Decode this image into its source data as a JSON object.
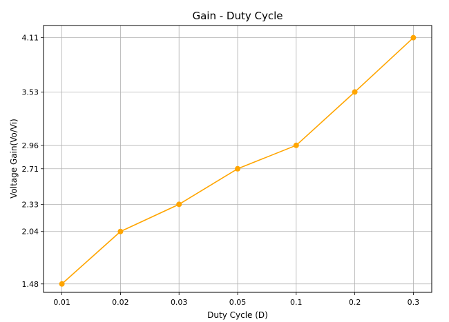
{
  "chart_data": {
    "type": "line",
    "title": "Gain - Duty Cycle",
    "xlabel": "Duty Cycle (D)",
    "ylabel": "Voltage Gain(Vo/Vi)",
    "categories": [
      "0.01",
      "0.02",
      "0.03",
      "0.05",
      "0.1",
      "0.2",
      "0.3"
    ],
    "series": [
      {
        "values": [
          1.48,
          2.04,
          2.33,
          2.71,
          2.96,
          3.53,
          4.11
        ],
        "color": "#FFA500"
      }
    ],
    "yticks": [
      "1.48",
      "2.04",
      "2.33",
      "2.71",
      "2.96",
      "3.53",
      "4.11"
    ],
    "ylim": [
      1.39,
      4.24
    ],
    "x_scale": "categorical",
    "grid": true,
    "legend": "none"
  }
}
